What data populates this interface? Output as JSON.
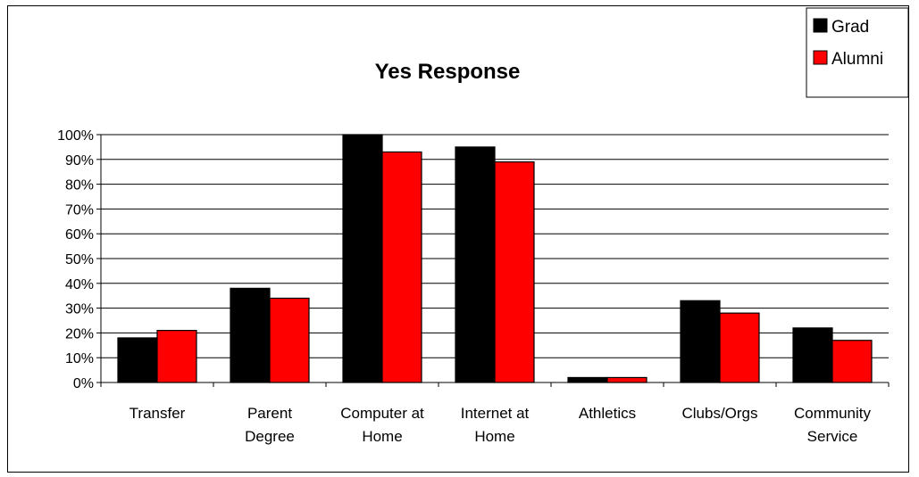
{
  "chart_data": {
    "type": "bar",
    "title": "Yes Response",
    "xlabel": "",
    "ylabel": "",
    "categories": [
      [
        "Transfer"
      ],
      [
        "Parent",
        "Degree"
      ],
      [
        "Computer at",
        "Home"
      ],
      [
        "Internet at",
        "Home"
      ],
      [
        "Athletics"
      ],
      [
        "Clubs/Orgs"
      ],
      [
        "Community",
        "Service"
      ]
    ],
    "series": [
      {
        "name": "Grad",
        "color": "#000000",
        "values": [
          0.18,
          0.38,
          1.0,
          0.95,
          0.02,
          0.33,
          0.22
        ]
      },
      {
        "name": "Alumni",
        "color": "#ff0000",
        "values": [
          0.21,
          0.34,
          0.93,
          0.89,
          0.02,
          0.28,
          0.17
        ]
      }
    ],
    "ylim": [
      0,
      1
    ],
    "yticks": [
      "0%",
      "10%",
      "20%",
      "30%",
      "40%",
      "50%",
      "60%",
      "70%",
      "80%",
      "90%",
      "100%"
    ],
    "grid": true,
    "legend_position": "top-right"
  }
}
